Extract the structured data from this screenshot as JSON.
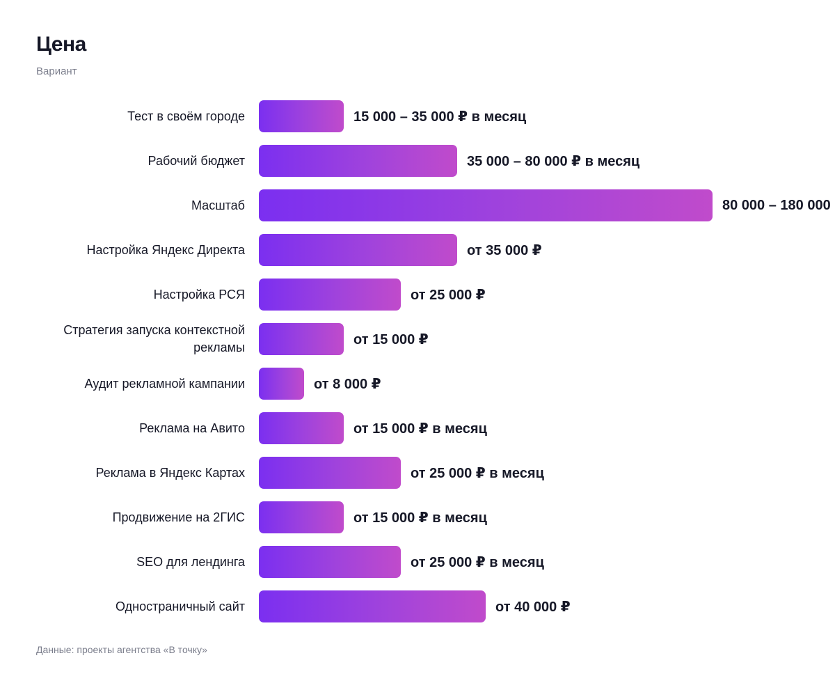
{
  "chart_data": {
    "type": "bar",
    "orientation": "horizontal",
    "title": "Цена",
    "subtitle": "Вариант",
    "source": "Данные: проекты агентства «В точку»",
    "categories": [
      "Тест в своём городе",
      "Рабочий бюджет",
      "Масштаб",
      "Настройка Яндекс Директа",
      "Настройка РСЯ",
      "Стратегия запуска контекстной рекламы",
      "Аудит рекламной кампании",
      "Реклама на Авито",
      "Реклама в Яндекс Картах",
      "Продвижение на 2ГИС",
      "SEO для лендинга",
      "Одностраничный сайт"
    ],
    "values": [
      15000,
      35000,
      80000,
      35000,
      25000,
      15000,
      8000,
      15000,
      25000,
      15000,
      25000,
      40000
    ],
    "value_labels": [
      "15 000 – 35 000 ₽ в месяц",
      "35 000 – 80 000 ₽ в месяц",
      "80 000 – 180 000",
      "от 35 000 ₽",
      "от 25 000 ₽",
      "от 15 000 ₽",
      "от 8 000 ₽",
      "от 15 000 ₽ в месяц",
      "от 25 000 ₽ в месяц",
      "от 15 000 ₽ в месяц",
      "от 25 000 ₽ в месяц",
      "от 40 000 ₽"
    ],
    "xlim": [
      0,
      80000
    ],
    "grid": false,
    "legend": "none",
    "colors": {
      "bar_start": "#7b2ff0",
      "bar_mid": "#a043dc",
      "bar_end": "#c04bcb",
      "text": "#161827",
      "muted": "#7b7e8c"
    }
  }
}
